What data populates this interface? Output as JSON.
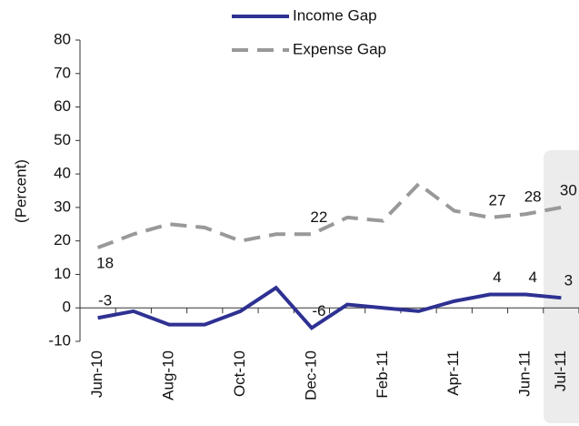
{
  "chart_data": {
    "type": "line",
    "y_label": "(Percent)",
    "categories": [
      "Jun-10",
      null,
      "Aug-10",
      null,
      "Oct-10",
      null,
      "Dec-10",
      null,
      "Feb-11",
      null,
      "Apr-11",
      null,
      "Jun-11",
      "Jul-11"
    ],
    "series": [
      {
        "name": "Income Gap",
        "color": "#2e3192",
        "dash": false,
        "values": [
          -3,
          -1,
          -5,
          -5,
          -1,
          6,
          -6,
          1,
          0,
          -1,
          2,
          4,
          4,
          3
        ],
        "value_labels": [
          "-3",
          null,
          null,
          null,
          null,
          null,
          "-6",
          null,
          null,
          null,
          null,
          "4",
          "4",
          "3"
        ]
      },
      {
        "name": "Expense Gap",
        "color": "#999999",
        "dash": true,
        "values": [
          18,
          22,
          25,
          24,
          20,
          22,
          22,
          27,
          26,
          37,
          29,
          27,
          28,
          30
        ],
        "value_labels": [
          "18",
          null,
          null,
          null,
          null,
          null,
          "22",
          null,
          null,
          null,
          null,
          "27",
          "28",
          "30"
        ]
      }
    ],
    "ylim": [
      -10,
      80
    ],
    "yticks": [
      -10,
      0,
      10,
      20,
      30,
      40,
      50,
      60,
      70,
      80
    ],
    "grid": false
  }
}
